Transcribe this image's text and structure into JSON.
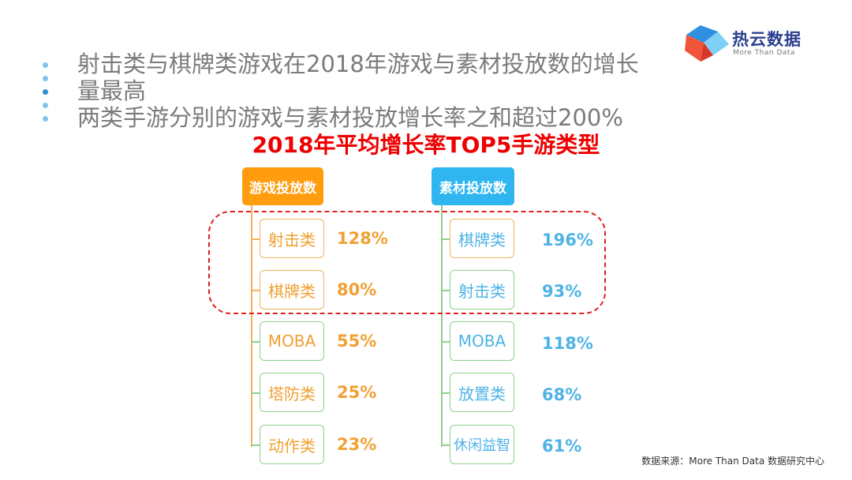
{
  "logo": {
    "name": "热云数据",
    "sub": "More Than Data"
  },
  "bullets": [
    "射击类与棋牌类游戏在2018年游戏与素材投放数的增长",
    "量最高",
    "两类手游分别的游戏与素材投放增长率之和超过200%"
  ],
  "headline": "2018年平均增长率TOP5手游类型",
  "colors": {
    "headline": "#ee0000",
    "left_accent": "#ff9d0f",
    "right_accent": "#2fb6f0",
    "left_item_border": "#f2b35d",
    "right_item_border": "#8fd18a",
    "left_pct": "#f2a033",
    "right_pct": "#4fb3e6",
    "highlight_border": "#e02020"
  },
  "left_column": {
    "header": "游戏投放数",
    "items": [
      {
        "label": "射击类",
        "value": "128%"
      },
      {
        "label": "棋牌类",
        "value": "80%"
      },
      {
        "label": "MOBA",
        "value": "55%"
      },
      {
        "label": "塔防类",
        "value": "25%"
      },
      {
        "label": "动作类",
        "value": "23%"
      }
    ]
  },
  "right_column": {
    "header": "素材投放数",
    "items": [
      {
        "label": "棋牌类",
        "value": "196%"
      },
      {
        "label": "射击类",
        "value": "93%"
      },
      {
        "label": "MOBA",
        "value": "118%"
      },
      {
        "label": "放置类",
        "value": "68%"
      },
      {
        "label": "休闲益智",
        "value": "61%"
      }
    ]
  },
  "source": "数据来源：More Than Data 数据研究中心"
}
